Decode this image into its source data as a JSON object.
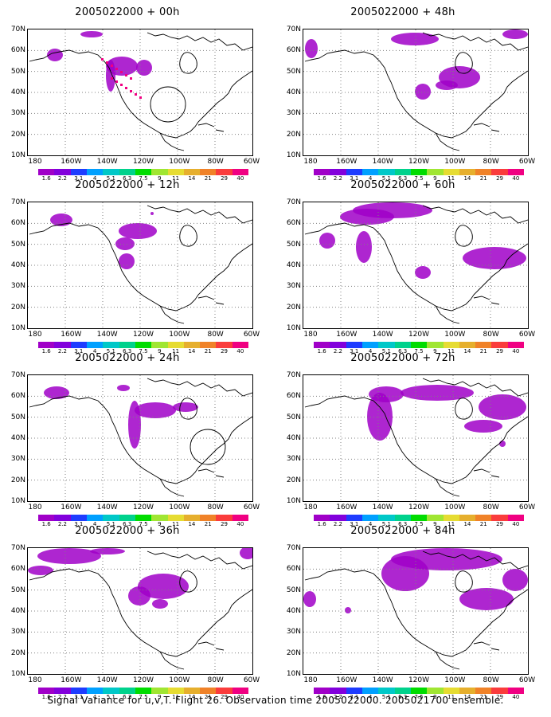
{
  "caption": "Signal Variance for u,v,T. Flight 26. Observation time 2005022000. 2005021700 ensemble.",
  "lat_labels": [
    "70N",
    "60N",
    "50N",
    "40N",
    "30N",
    "20N",
    "10N"
  ],
  "lon_labels": [
    "180",
    "160W",
    "140W",
    "120W",
    "100W",
    "80W",
    "60W"
  ],
  "colorbar": {
    "labels": [
      "1.6",
      "2.2",
      "3.1",
      "4",
      "5.1",
      "6.3",
      "7.5",
      "9",
      "11",
      "14",
      "21",
      "29",
      "40"
    ],
    "colors": [
      "#a000c8",
      "#8200dc",
      "#1e3cff",
      "#00a0ff",
      "#00c8c8",
      "#00d28c",
      "#00dc00",
      "#a0e632",
      "#e6dc32",
      "#e6af2d",
      "#f08228",
      "#fa3c3c",
      "#f00082"
    ]
  },
  "panels": [
    {
      "title": "2005022000 + 00h"
    },
    {
      "title": "2005022000 + 48h"
    },
    {
      "title": "2005022000 + 12h"
    },
    {
      "title": "2005022000 + 60h"
    },
    {
      "title": "2005022000 + 24h"
    },
    {
      "title": "2005022000 + 72h"
    },
    {
      "title": "2005022000 + 36h"
    },
    {
      "title": "2005022000 + 84h"
    }
  ]
}
